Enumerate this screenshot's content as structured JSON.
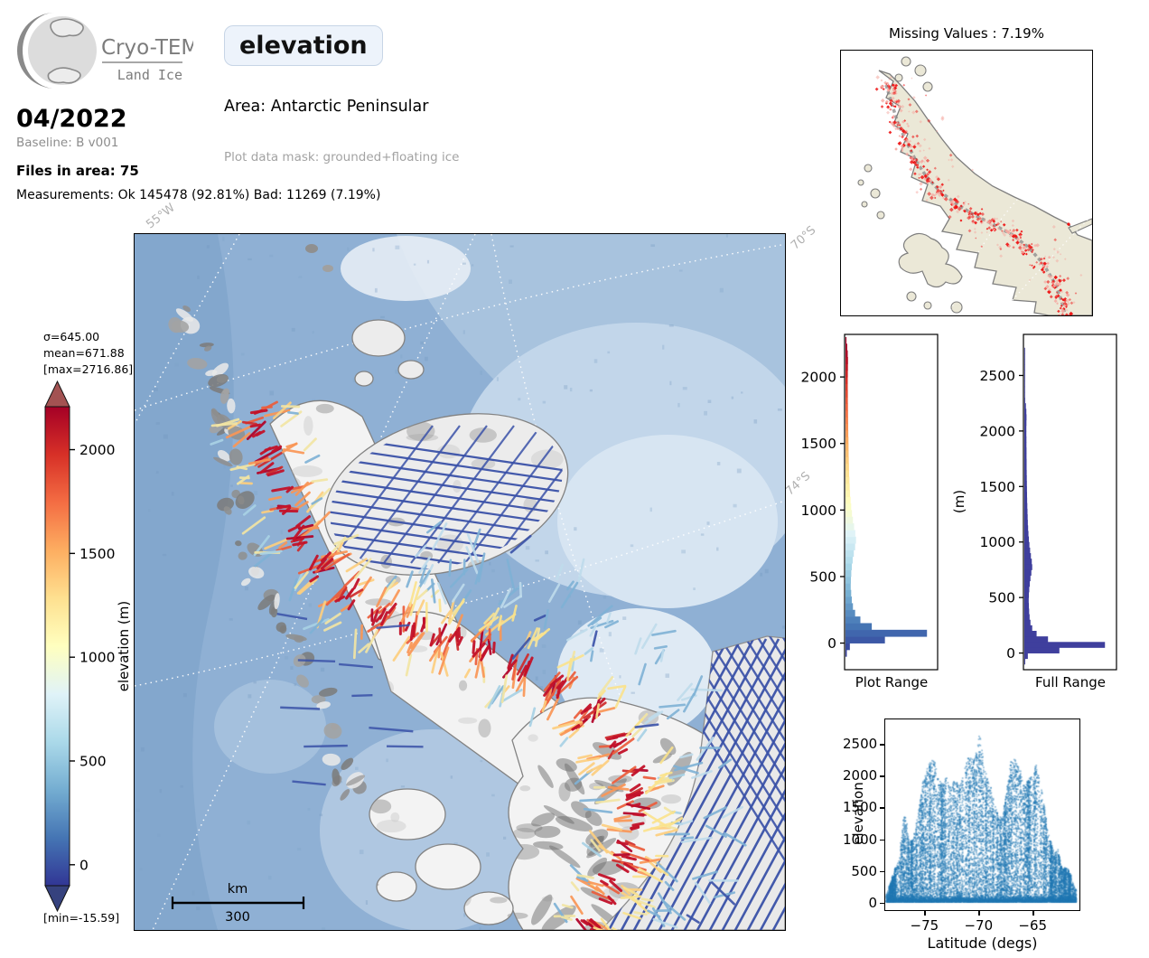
{
  "header": {
    "logo_title": "Cryo-TEMPO",
    "logo_subtitle": "Land Ice",
    "variable": "elevation",
    "date": "04/2022",
    "baseline": "Baseline: B v001",
    "files": "Files in area: 75",
    "measurements": "Measurements: Ok 145478 (92.81%) Bad: 11269 (7.19%)",
    "area": "Area: Antarctic Peninsular",
    "mask": "Plot data mask: grounded+floating ice"
  },
  "colors": {
    "scatter_blue": "#1f77b4",
    "full_hist_blue": "#3f3f9d",
    "track_navy": "#3a52a8",
    "missing_red": "#ee1111",
    "missing_red_light": "#f5a8a0",
    "land_beige": "#ebe8d7",
    "coast_gray": "#7e7e7e",
    "ocean_blue": "#8fb0d4"
  },
  "colorbar": {
    "stats": [
      "σ=645.00",
      "mean=671.88",
      "[max=2716.86]"
    ],
    "min_label": "[min=-15.59]",
    "axis_label": "elevation (m)",
    "ticks": [
      0,
      500,
      1000,
      1500,
      2000
    ],
    "vmin": -101,
    "vmax": 2207,
    "cmap_stops": [
      "#313695",
      "#4575b4",
      "#74add1",
      "#abd9e9",
      "#e0f3f8",
      "#ffffbf",
      "#fee090",
      "#fdae61",
      "#f46d43",
      "#d73027",
      "#a50026"
    ],
    "over_color": "#a35252",
    "under_color": "#36427e"
  },
  "main_map": {
    "lon_label": "55°W",
    "lat_label_top": "70°S",
    "lat_label_mid": "74°S",
    "scalebar_unit": "km",
    "scalebar_value": "300",
    "spine": [
      [
        137,
        207
      ],
      [
        152,
        252
      ],
      [
        167,
        297
      ],
      [
        182,
        332
      ],
      [
        207,
        367
      ],
      [
        237,
        397
      ],
      [
        272,
        422
      ],
      [
        307,
        437
      ],
      [
        347,
        447
      ],
      [
        387,
        457
      ],
      [
        427,
        477
      ],
      [
        467,
        502
      ],
      [
        502,
        532
      ],
      [
        532,
        567
      ],
      [
        552,
        607
      ],
      [
        557,
        647
      ],
      [
        547,
        687
      ],
      [
        527,
        727
      ],
      [
        507,
        762
      ]
    ]
  },
  "missing_map": {
    "title": "Missing Values : 7.19%",
    "spine": [
      [
        50,
        38
      ],
      [
        56,
        58
      ],
      [
        63,
        80
      ],
      [
        72,
        100
      ],
      [
        83,
        122
      ],
      [
        95,
        140
      ],
      [
        110,
        156
      ],
      [
        128,
        170
      ],
      [
        148,
        182
      ],
      [
        168,
        192
      ],
      [
        190,
        204
      ],
      [
        208,
        218
      ],
      [
        224,
        236
      ],
      [
        236,
        256
      ],
      [
        244,
        276
      ],
      [
        248,
        292
      ]
    ]
  },
  "chart_data": [
    {
      "id": "plot_range_hist",
      "type": "bar",
      "orientation": "horizontal",
      "title": "Plot Range",
      "ylabel": "",
      "ylim": [
        -200,
        2320
      ],
      "yticks": [
        0,
        500,
        1000,
        1500,
        2000
      ],
      "bin_start": -100,
      "bin_size": 50,
      "values": [
        0.015,
        0.05,
        0.45,
        0.93,
        0.3,
        0.17,
        0.11,
        0.085,
        0.072,
        0.065,
        0.06,
        0.062,
        0.066,
        0.072,
        0.082,
        0.095,
        0.11,
        0.12,
        0.112,
        0.098,
        0.085,
        0.074,
        0.065,
        0.058,
        0.052,
        0.048,
        0.045,
        0.042,
        0.04,
        0.038,
        0.036,
        0.035,
        0.034,
        0.032,
        0.031,
        0.03,
        0.029,
        0.028,
        0.027,
        0.027,
        0.026,
        0.026,
        0.027,
        0.028,
        0.029,
        0.026,
        0.02,
        0.011
      ],
      "color_mode": "colormap"
    },
    {
      "id": "full_range_hist",
      "type": "bar",
      "orientation": "horizontal",
      "title": "Full Range",
      "ylabel": "(m)",
      "ylim": [
        -150,
        2870
      ],
      "yticks": [
        0,
        500,
        1000,
        1500,
        2000,
        2500
      ],
      "bin_start": -100,
      "bin_size": 50,
      "values": [
        0.01,
        0.04,
        0.4,
        0.92,
        0.27,
        0.14,
        0.09,
        0.07,
        0.06,
        0.055,
        0.052,
        0.05,
        0.052,
        0.056,
        0.062,
        0.07,
        0.08,
        0.09,
        0.085,
        0.075,
        0.066,
        0.058,
        0.052,
        0.047,
        0.043,
        0.04,
        0.038,
        0.036,
        0.034,
        0.032,
        0.031,
        0.03,
        0.029,
        0.028,
        0.027,
        0.026,
        0.026,
        0.025,
        0.025,
        0.024,
        0.024,
        0.023,
        0.023,
        0.024,
        0.025,
        0.023,
        0.018,
        0.01,
        0.005,
        0.003,
        0.002,
        0.002,
        0.001,
        0.001,
        0.001,
        0.0005,
        0.0005
      ],
      "color_mode": "fixed"
    },
    {
      "id": "lat_elev_scatter",
      "type": "scatter",
      "xlabel": "Latitude (degs)",
      "ylabel": "elevation",
      "xlim": [
        -78.7,
        -60.6
      ],
      "ylim": [
        -130,
        2900
      ],
      "xticks": [
        -75,
        -70,
        -65
      ],
      "yticks": [
        0,
        500,
        1000,
        1500,
        2000,
        2500
      ],
      "envelope": [
        [
          -78.6,
          120
        ],
        [
          -78.2,
          300
        ],
        [
          -77.8,
          520
        ],
        [
          -77.4,
          680
        ],
        [
          -77.0,
          1350
        ],
        [
          -76.8,
          1380
        ],
        [
          -76.5,
          950
        ],
        [
          -76.2,
          980
        ],
        [
          -75.9,
          1150
        ],
        [
          -75.6,
          1480
        ],
        [
          -75.2,
          1900
        ],
        [
          -74.8,
          2150
        ],
        [
          -74.4,
          2260
        ],
        [
          -74.1,
          2230
        ],
        [
          -73.8,
          1980
        ],
        [
          -73.4,
          1850
        ],
        [
          -73.0,
          1990
        ],
        [
          -72.6,
          1820
        ],
        [
          -72.2,
          1950
        ],
        [
          -71.8,
          1830
        ],
        [
          -71.4,
          2050
        ],
        [
          -71.0,
          2280
        ],
        [
          -70.6,
          2290
        ],
        [
          -70.2,
          2350
        ],
        [
          -69.9,
          2716
        ],
        [
          -69.7,
          2430
        ],
        [
          -69.4,
          2080
        ],
        [
          -69.0,
          1920
        ],
        [
          -68.6,
          1600
        ],
        [
          -68.2,
          1400
        ],
        [
          -67.8,
          1320
        ],
        [
          -67.4,
          1750
        ],
        [
          -67.0,
          2230
        ],
        [
          -66.6,
          2270
        ],
        [
          -66.2,
          2120
        ],
        [
          -65.8,
          1850
        ],
        [
          -65.4,
          1950
        ],
        [
          -65.0,
          2010
        ],
        [
          -64.6,
          2220
        ],
        [
          -64.2,
          1900
        ],
        [
          -63.8,
          1450
        ],
        [
          -63.4,
          1050
        ],
        [
          -63.0,
          760
        ],
        [
          -62.6,
          830
        ],
        [
          -62.2,
          520
        ],
        [
          -61.8,
          560
        ],
        [
          -61.4,
          420
        ],
        [
          -61.0,
          200
        ]
      ]
    }
  ]
}
